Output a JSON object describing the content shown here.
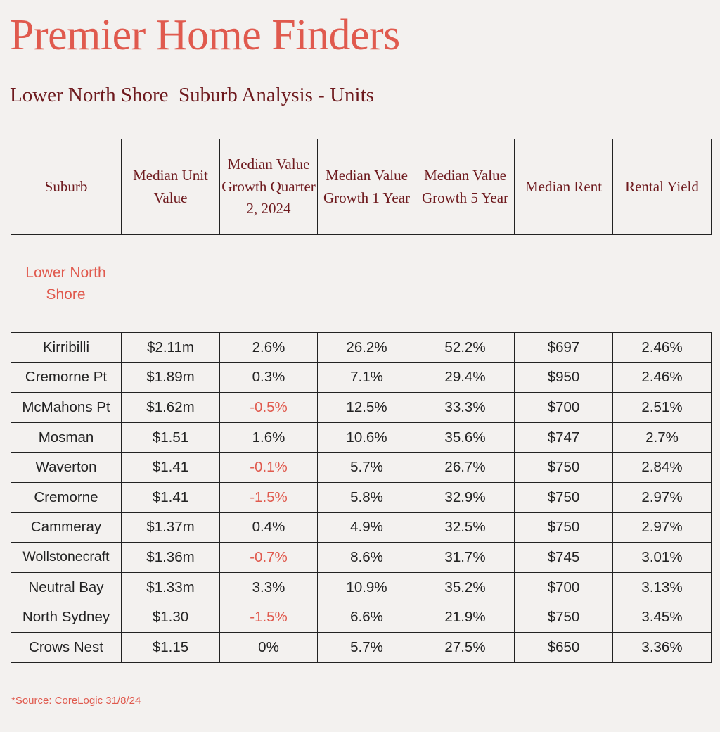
{
  "brand": "Premier Home Finders",
  "subtitle": "Lower North Shore  Suburb Analysis - Units",
  "table": {
    "headers": [
      "Suburb",
      "Median Unit Value",
      "Median Value Growth Quarter 2, 2024",
      "Median Value Growth 1 Year",
      "Median Value Growth 5 Year",
      "Median Rent",
      "Rental Yield"
    ],
    "group_label": "Lower North Shore",
    "rows": [
      {
        "suburb": "Kirribilli",
        "value": "$2.11m",
        "q2": "2.6%",
        "y1": "26.2%",
        "y5": "52.2%",
        "rent": "$697",
        "yield": "2.46%"
      },
      {
        "suburb": "Cremorne Pt",
        "value": "$1.89m",
        "q2": "0.3%",
        "y1": "7.1%",
        "y5": "29.4%",
        "rent": "$950",
        "yield": "2.46%"
      },
      {
        "suburb": "McMahons Pt",
        "value": "$1.62m",
        "q2": "-0.5%",
        "y1": "12.5%",
        "y5": "33.3%",
        "rent": "$700",
        "yield": "2.51%"
      },
      {
        "suburb": "Mosman",
        "value": "$1.51",
        "q2": "1.6%",
        "y1": "10.6%",
        "y5": "35.6%",
        "rent": "$747",
        "yield": "2.7%"
      },
      {
        "suburb": "Waverton",
        "value": "$1.41",
        "q2": "-0.1%",
        "y1": "5.7%",
        "y5": "26.7%",
        "rent": "$750",
        "yield": "2.84%"
      },
      {
        "suburb": "Cremorne",
        "value": "$1.41",
        "q2": "-1.5%",
        "y1": "5.8%",
        "y5": "32.9%",
        "rent": "$750",
        "yield": "2.97%"
      },
      {
        "suburb": "Cammeray",
        "value": "$1.37m",
        "q2": "0.4%",
        "y1": "4.9%",
        "y5": "32.5%",
        "rent": "$750",
        "yield": "2.97%"
      },
      {
        "suburb": "Wollstonecraft",
        "value": "$1.36m",
        "q2": "-0.7%",
        "y1": "8.6%",
        "y5": "31.7%",
        "rent": "$745",
        "yield": "3.01%"
      },
      {
        "suburb": "Neutral Bay",
        "value": "$1.33m",
        "q2": "3.3%",
        "y1": "10.9%",
        "y5": "35.2%",
        "rent": "$700",
        "yield": "3.13%"
      },
      {
        "suburb": "North Sydney",
        "value": "$1.30",
        "q2": "-1.5%",
        "y1": "6.6%",
        "y5": "21.9%",
        "rent": "$750",
        "yield": "3.45%"
      },
      {
        "suburb": "Crows Nest",
        "value": "$1.15",
        "q2": "0%",
        "y1": "5.7%",
        "y5": "27.5%",
        "rent": "$650",
        "yield": "3.36%"
      }
    ]
  },
  "footnote": "*Source: CoreLogic 31/8/24",
  "colors": {
    "brand": "#e05a4e",
    "heading": "#6e1a1e",
    "negative": "#e05a4e",
    "text": "#222222",
    "background": "#f3f1ef"
  }
}
